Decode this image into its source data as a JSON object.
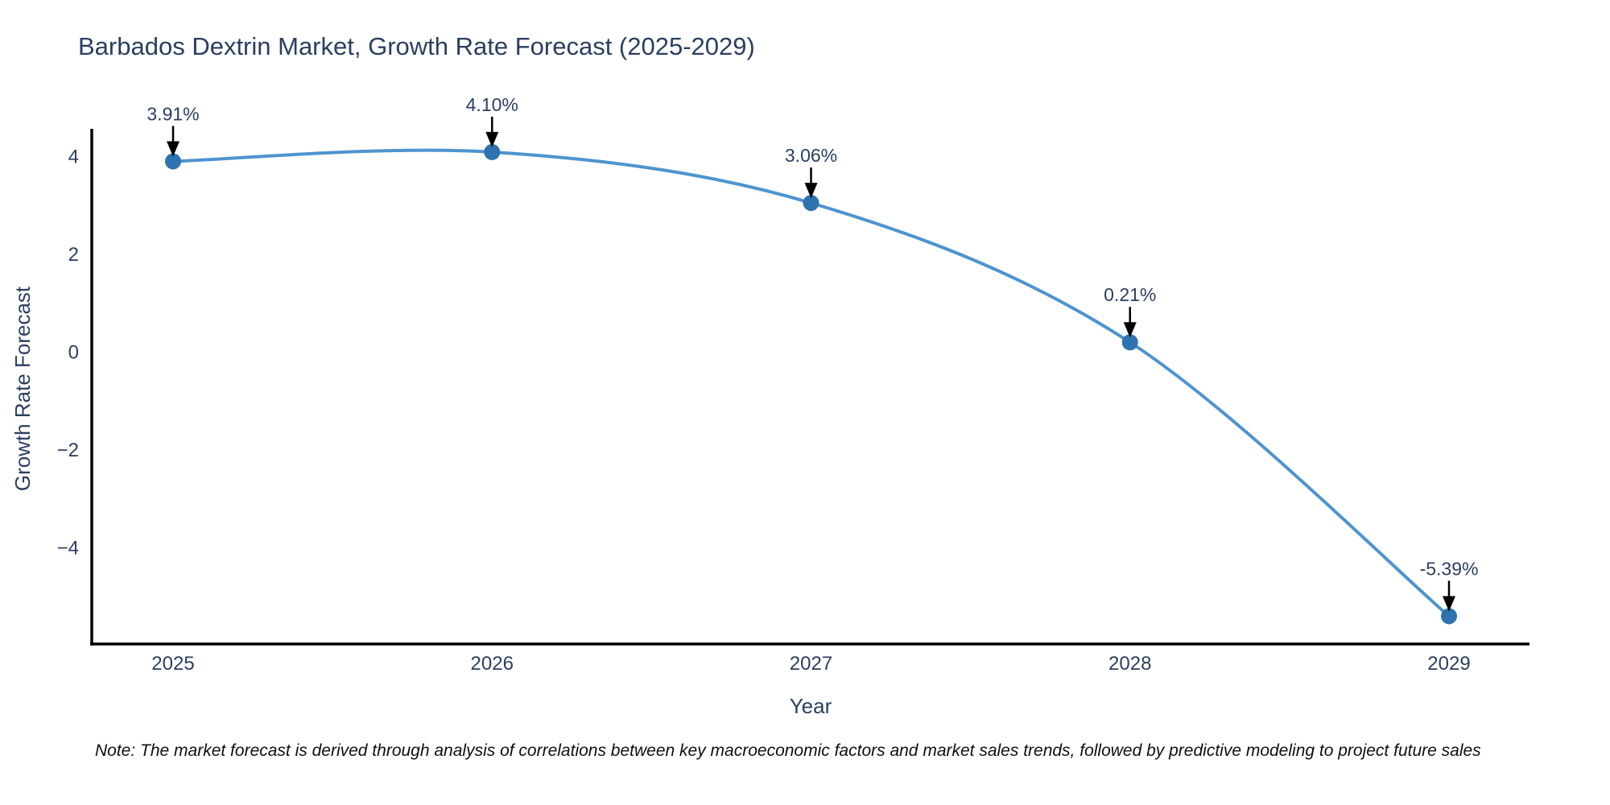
{
  "title": "Barbados Dextrin Market, Growth Rate Forecast (2025-2029)",
  "note": "Note: The market forecast is derived through analysis of correlations between key macroeconomic factors and market sales trends, followed by predictive modeling to project future sales",
  "chart_data": {
    "type": "line",
    "title": "Barbados Dextrin Market, Growth Rate Forecast (2025-2029)",
    "xlabel": "Year",
    "ylabel": "Growth Rate Forecast",
    "x": [
      2025,
      2026,
      2027,
      2028,
      2029
    ],
    "series": [
      {
        "name": "Growth Rate Forecast",
        "values": [
          3.91,
          4.1,
          3.06,
          0.21,
          -5.39
        ]
      }
    ],
    "point_labels": [
      "3.91%",
      "4.10%",
      "3.06%",
      "0.21%",
      "-5.39%"
    ],
    "yticks": [
      4,
      2,
      0,
      -2,
      -4
    ],
    "ylim": [
      -5.95,
      5.1
    ],
    "grid": false,
    "legend": false,
    "line_shape": "spline",
    "annotation_style": "label-with-down-arrow",
    "colors": {
      "line": "#4e94cf",
      "marker": "#2f72b0",
      "axis": "#000000",
      "text": "#2a3f5f",
      "annotation_arrow": "#000000"
    }
  }
}
